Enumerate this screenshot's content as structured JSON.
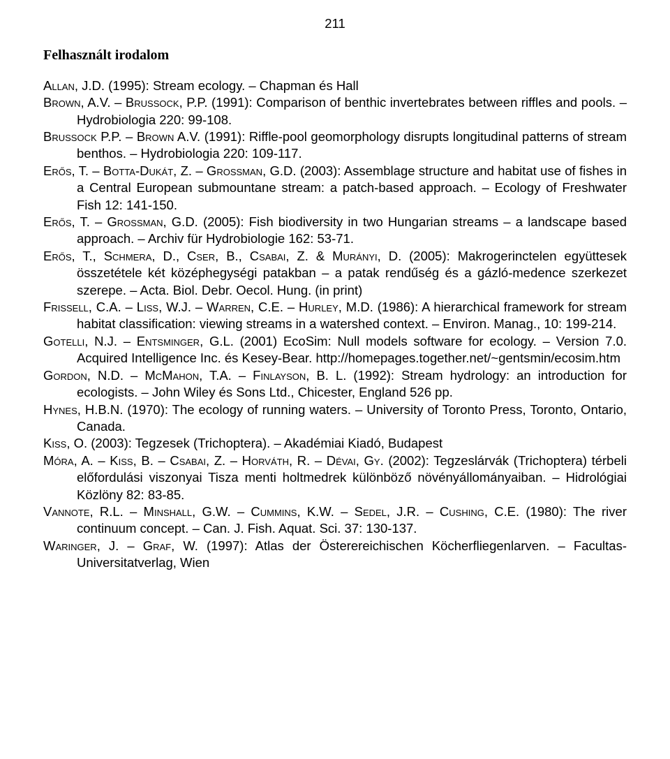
{
  "page_number": "211",
  "section_title": "Felhasznált irodalom",
  "refs": [
    "A<span class='sc'>llan</span>, J.D. (1995): Stream ecology. – Chapman és Hall",
    "B<span class='sc'>rown</span>, A.V. – B<span class='sc'>russock</span>, P.P. (1991): Comparison of benthic invertebrates between riffles and pools. – Hydrobiologia 220: 99-108.",
    "B<span class='sc'>russock</span> P.P. – B<span class='sc'>rown</span> A.V. (1991): Riffle-pool geomorphology disrupts longitudinal patterns of stream benthos. – Hydrobiologia 220: 109-117.",
    "E<span class='sc'>rős</span>, T. – B<span class='sc'>otta</span>-D<span class='sc'>ukát</span>, Z. – G<span class='sc'>rossman</span>, G.D. (2003): Assemblage structure and habitat use of fishes in a Central European submountane stream: a patch-based approach. – Ecology of Freshwater Fish 12: 141-150.",
    "E<span class='sc'>rős</span>, T. – G<span class='sc'>rossman</span>, G.D. (2005): Fish biodiversity in two Hungarian streams – a landscape based approach. – Archiv für Hydrobiologie 162: 53-71.",
    "E<span class='sc'>rős</span>, T., S<span class='sc'>chmera</span>, D., C<span class='sc'>ser</span>, B., C<span class='sc'>sabai</span>, Z. & M<span class='sc'>urányi</span>, D. (2005): Makrogerinctelen együttesek összetétele két középhegységi patakban – a patak rendűség és a gázló-medence szerkezet szerepe. – Acta. Biol. Debr. Oecol. Hung. (in print)",
    "F<span class='sc'>rissell</span>, C.A. – L<span class='sc'>iss</span>, W.J. – W<span class='sc'>arren</span>, C.E. – H<span class='sc'>urley</span>, M.D. (1986): A hierarchical framework for stream habitat classification: viewing streams in a watershed context. – Environ. Manag., 10: 199-214.",
    "G<span class='sc'>otelli</span>, N.J. – E<span class='sc'>ntsminger</span>, G.L. (2001) EcoSim: Null models software for ecology. – Version 7.0. Acquired Intelligence Inc. és Kesey-Bear. http://homepages.together.net/~gentsmin/ecosim.htm",
    "G<span class='sc'>ordon</span>, N.D. – M<span class='sc'>c</span>M<span class='sc'>ahon</span>, T.A. – F<span class='sc'>inlayson</span>, B. L. (1992): Stream hydrology: an introduction for ecologists. – John Wiley és Sons Ltd., Chicester, England 526 pp.",
    "H<span class='sc'>ynes</span>, H.B.N. (1970): The ecology of running waters. – University of Toronto Press, Toronto, Ontario, Canada.",
    "K<span class='sc'>iss</span>, O. (2003): Tegzesek (Trichoptera). – Akadémiai Kiadó, Budapest",
    "M<span class='sc'>óra</span>, A. – K<span class='sc'>iss</span>, B. – C<span class='sc'>sabai</span>, Z. – H<span class='sc'>orváth</span>, R. – D<span class='sc'>évai</span>, G<span class='sc'>y</span>. (2002): Tegzeslárvák (Trichoptera) térbeli előfordulási viszonyai Tisza menti holtmedrek különböző növényállományaiban. – Hidrológiai Közlöny 82: 83-85.",
    "V<span class='sc'>annote</span>, R.L. – M<span class='sc'>inshall</span>, G.W. – C<span class='sc'>ummins</span>, K.W. – S<span class='sc'>edel</span>, J.R. – C<span class='sc'>ushing</span>, C.E. (1980): The river continuum concept. – Can. J. Fish. Aquat. Sci. 37: 130-137.",
    "W<span class='sc'>aringer</span>, J. – G<span class='sc'>raf</span>, W. (1997): Atlas der Österereichischen Köcherfliegenlarven. – Facultas-Universitatverlag, Wien"
  ]
}
